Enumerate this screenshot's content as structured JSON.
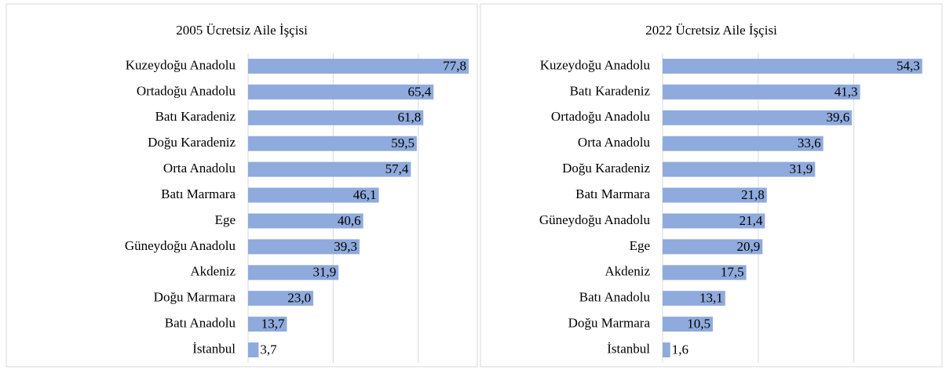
{
  "chart_data": [
    {
      "type": "bar",
      "orientation": "horizontal",
      "title": "2005 Ücretsiz Aile İşçisi",
      "categories": [
        "Kuzeydoğu Anadolu",
        "Ortadoğu Anadolu",
        "Batı Karadeniz",
        "Doğu Karadeniz",
        "Orta Anadolu",
        "Batı Marmara",
        "Ege",
        "Güneydoğu Anadolu",
        "Akdeniz",
        "Doğu Marmara",
        "Batı Anadolu",
        "İstanbul"
      ],
      "values": [
        77.8,
        65.4,
        61.8,
        59.5,
        57.4,
        46.1,
        40.6,
        39.3,
        31.9,
        23.0,
        13.7,
        3.7
      ],
      "value_labels": [
        "77,8",
        "65,4",
        "61,8",
        "59,5",
        "57,4",
        "46,1",
        "40,6",
        "39,3",
        "31,9",
        "23,0",
        "13,7",
        "3,7"
      ],
      "color": "#8faadc",
      "xlim": [
        0,
        80
      ],
      "xticks": [
        0,
        30,
        60
      ],
      "grid": true
    },
    {
      "type": "bar",
      "orientation": "horizontal",
      "title": "2022 Ücretsiz Aile İşçisi",
      "categories": [
        "Kuzeydoğu Anadolu",
        "Batı Karadeniz",
        "Ortadoğu Anadolu",
        "Orta Anadolu",
        "Doğu Karadeniz",
        "Batı Marmara",
        "Güneydoğu Anadolu",
        "Ege",
        "Akdeniz",
        "Batı Anadolu",
        "Doğu Marmara",
        "İstanbul"
      ],
      "values": [
        54.3,
        41.3,
        39.6,
        33.6,
        31.9,
        21.8,
        21.4,
        20.9,
        17.5,
        13.1,
        10.5,
        1.6
      ],
      "value_labels": [
        "54,3",
        "41,3",
        "39,6",
        "33,6",
        "31,9",
        "21,8",
        "21,4",
        "20,9",
        "17,5",
        "13,1",
        "10,5",
        "1,6"
      ],
      "color": "#8faadc",
      "xlim": [
        0,
        55
      ],
      "xticks": [
        0,
        20,
        40
      ],
      "grid": true
    }
  ]
}
